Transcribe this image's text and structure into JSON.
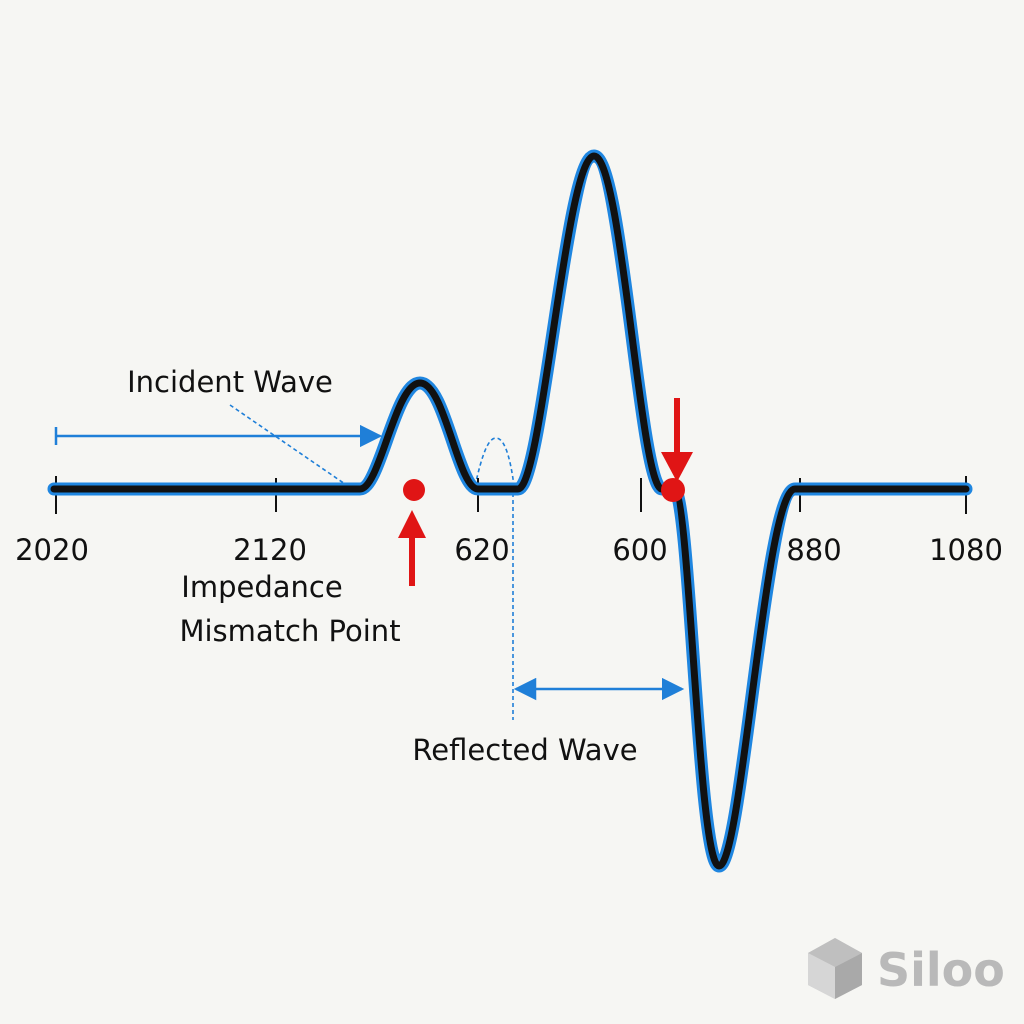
{
  "diagram": {
    "annotations": {
      "incident": "Incident Wave",
      "impedance_line1": "Impedance",
      "impedance_line2": "Mismatch Point",
      "reflected": "Reflected Wave"
    },
    "ticks": [
      "2020",
      "2120",
      "620",
      "600",
      "880",
      "1080"
    ],
    "colors": {
      "trace": "#111111",
      "trace_glow": "#1f86e0",
      "guide": "#1f7fd8",
      "marker": "#e01515",
      "background": "#f6f6f3"
    }
  },
  "watermark": {
    "text": "Siloo",
    "icon": "cube-icon"
  }
}
